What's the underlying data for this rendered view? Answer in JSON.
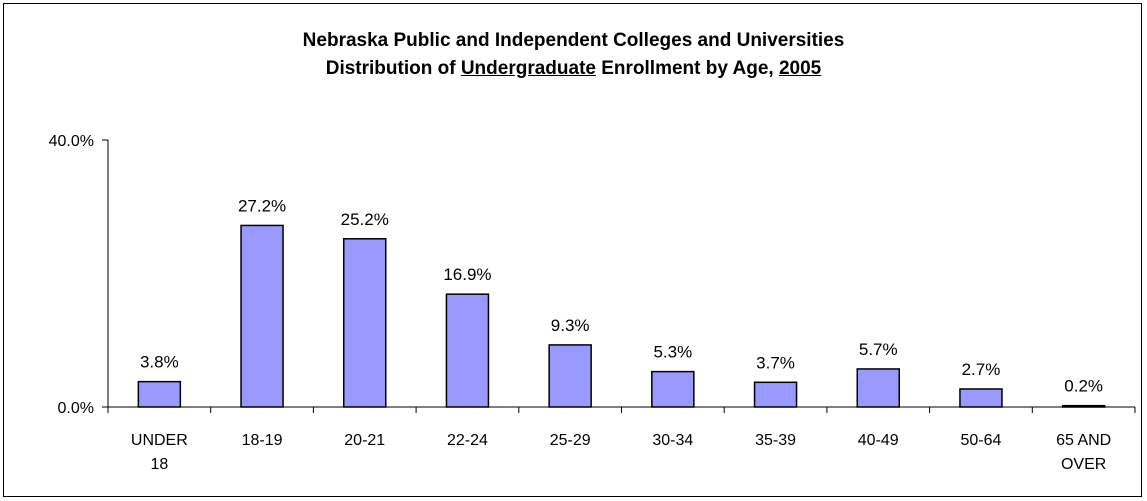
{
  "chart_data": {
    "type": "bar",
    "title_line1": "Nebraska Public and Independent Colleges and Universities",
    "title_line2_parts": [
      "Distribution of ",
      "Undergraduate",
      " Enrollment by Age, ",
      "2005"
    ],
    "categories": [
      [
        "UNDER",
        "18"
      ],
      [
        "18-19"
      ],
      [
        "20-21"
      ],
      [
        "22-24"
      ],
      [
        "25-29"
      ],
      [
        "30-34"
      ],
      [
        "35-39"
      ],
      [
        "40-49"
      ],
      [
        "50-64"
      ],
      [
        "65 AND",
        "OVER"
      ]
    ],
    "values": [
      3.8,
      27.2,
      25.2,
      16.9,
      9.3,
      5.3,
      3.7,
      5.7,
      2.7,
      0.2
    ],
    "value_labels": [
      "3.8%",
      "27.2%",
      "25.2%",
      "16.9%",
      "9.3%",
      "5.3%",
      "3.7%",
      "5.7%",
      "2.7%",
      "0.2%"
    ],
    "ylim": [
      0,
      40
    ],
    "yticks": [
      "0.0%",
      "40.0%"
    ],
    "xlabel": "",
    "ylabel": "",
    "grid": false,
    "bar_color": "#9999ff"
  }
}
